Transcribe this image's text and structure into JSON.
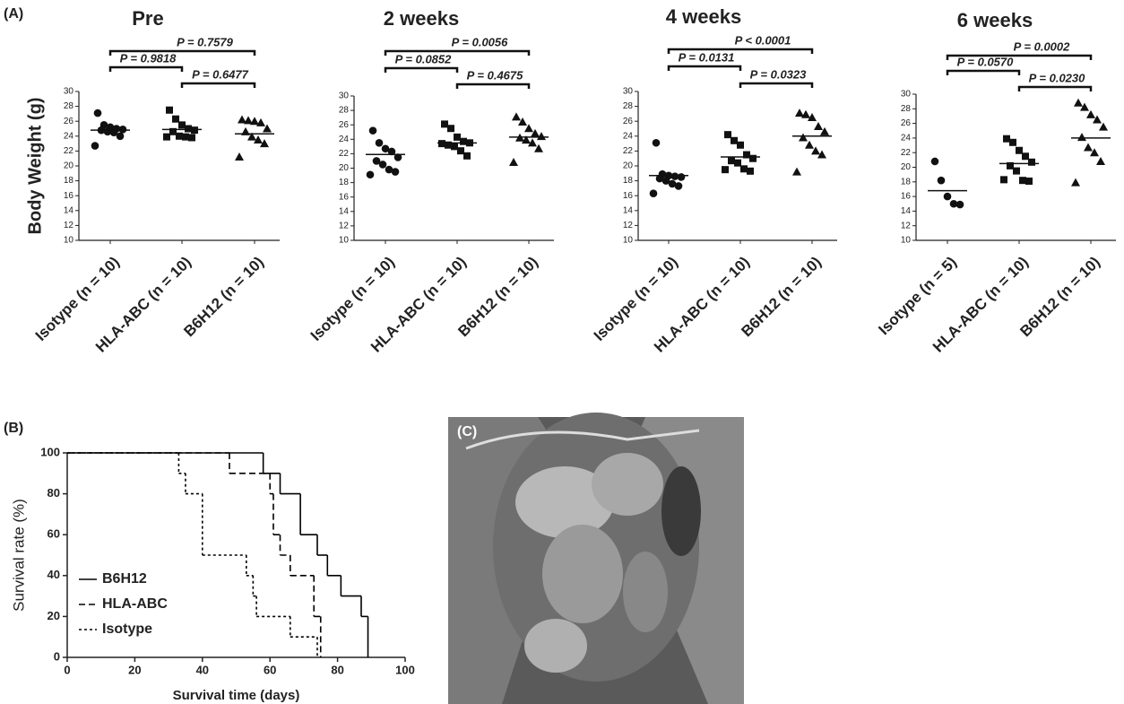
{
  "panel_labels": [
    "(A)",
    "(B)",
    "(C)"
  ],
  "chart_data": [
    {
      "type": "dot",
      "title": "Pre",
      "ylabel": "Body Weight (g)",
      "categories": [
        "Isotype (n = 10)",
        "HLA-ABC (n = 10)",
        "B6H12 (n = 10)"
      ],
      "markers": [
        "circle",
        "square",
        "triangle"
      ],
      "values": [
        [
          27.1,
          25.5,
          25.2,
          25.0,
          24.9,
          24.8,
          24.6,
          24.5,
          24.0,
          22.7
        ],
        [
          27.5,
          26.3,
          25.5,
          25.0,
          24.8,
          24.6,
          24.0,
          23.9,
          23.8,
          23.9
        ],
        [
          26.2,
          26.1,
          26.0,
          25.8,
          25.0,
          24.6,
          23.9,
          23.5,
          23.0,
          21.2
        ]
      ],
      "means": [
        24.8,
        24.9,
        24.3
      ],
      "comparisons": [
        "P = 0.7579",
        "P = 0.9818",
        "P = 0.6477"
      ],
      "ylim": [
        10,
        30
      ],
      "yticks": [
        10,
        12,
        14,
        16,
        18,
        20,
        22,
        24,
        26,
        28,
        30
      ]
    },
    {
      "type": "dot",
      "title": "2 weeks",
      "categories": [
        "Isotype (n = 10)",
        "HLA-ABC (n = 10)",
        "B6H12 (n = 10)"
      ],
      "markers": [
        "circle",
        "square",
        "triangle"
      ],
      "values": [
        [
          25.2,
          23.5,
          22.7,
          22.3,
          21.5,
          21.0,
          20.5,
          19.8,
          19.5,
          19.1
        ],
        [
          26.1,
          25.5,
          24.3,
          23.7,
          23.5,
          23.2,
          23.0,
          22.4,
          21.7,
          23.4
        ],
        [
          27.1,
          26.4,
          25.5,
          24.8,
          24.4,
          24.2,
          23.9,
          23.5,
          22.7,
          20.8
        ]
      ],
      "means": [
        21.9,
        23.5,
        24.3
      ],
      "comparisons": [
        "P = 0.0056",
        "P = 0.0852",
        "P = 0.4675"
      ],
      "ylim": [
        10,
        30
      ],
      "yticks": [
        10,
        12,
        14,
        16,
        18,
        20,
        22,
        24,
        26,
        28,
        30
      ]
    },
    {
      "type": "dot",
      "title": "4 weeks",
      "categories": [
        "Isotype (n = 10)",
        "HLA-ABC (n = 10)",
        "B6H12 (n = 10)"
      ],
      "markers": [
        "circle",
        "square",
        "triangle"
      ],
      "values": [
        [
          23.1,
          18.9,
          18.7,
          18.6,
          18.5,
          18.3,
          18.0,
          17.6,
          17.3,
          16.3
        ],
        [
          24.2,
          23.4,
          22.8,
          21.5,
          21.0,
          20.7,
          20.4,
          19.6,
          19.3,
          19.5
        ],
        [
          27.1,
          26.9,
          26.5,
          25.3,
          24.6,
          23.8,
          22.8,
          22.0,
          21.5,
          19.2
        ]
      ],
      "means": [
        18.7,
        21.2,
        24.0
      ],
      "comparisons": [
        "P < 0.0001",
        "P = 0.0131",
        "P = 0.0323"
      ],
      "ylim": [
        10,
        30
      ],
      "yticks": [
        10,
        12,
        14,
        16,
        18,
        20,
        22,
        24,
        26,
        28,
        30
      ]
    },
    {
      "type": "dot",
      "title": "6 weeks",
      "categories": [
        "Isotype (n = 5)",
        "HLA-ABC (n = 10)",
        "B6H12 (n = 10)"
      ],
      "markers": [
        "circle",
        "square",
        "triangle"
      ],
      "values": [
        [
          20.8,
          18.2,
          16.0,
          15.0,
          14.9
        ],
        [
          23.9,
          23.4,
          22.3,
          21.5,
          20.7,
          20.2,
          19.5,
          18.2,
          18.1,
          18.3
        ],
        [
          28.8,
          28.2,
          27.2,
          26.5,
          25.5,
          24.1,
          22.7,
          22.0,
          20.8,
          17.9
        ]
      ],
      "means": [
        16.8,
        20.5,
        24.0
      ],
      "comparisons": [
        "P = 0.0002",
        "P = 0.0570",
        "P = 0.0230"
      ],
      "ylim": [
        10,
        30
      ],
      "yticks": [
        10,
        12,
        14,
        16,
        18,
        20,
        22,
        24,
        26,
        28,
        30
      ]
    },
    {
      "type": "step",
      "xlabel": "Survival time (days)",
      "ylabel": "Survival rate (%)",
      "series": [
        {
          "name": "B6H12",
          "dash": "solid",
          "color": "#000000",
          "x": [
            0,
            58,
            63,
            69,
            74,
            77,
            81,
            87,
            89
          ],
          "values": [
            100,
            90,
            80,
            60,
            50,
            40,
            30,
            20,
            0
          ]
        },
        {
          "name": "HLA-ABC",
          "dash": "dashed",
          "color": "#000000",
          "x": [
            0,
            48,
            60,
            61,
            63,
            66,
            73,
            75
          ],
          "values": [
            100,
            90,
            80,
            60,
            50,
            40,
            20,
            0
          ]
        },
        {
          "name": "Isotype",
          "dash": "dotted",
          "color": "#000000",
          "x": [
            0,
            33,
            35,
            40,
            53,
            55,
            56,
            66,
            74
          ],
          "values": [
            100,
            90,
            80,
            50,
            40,
            30,
            20,
            10,
            0
          ]
        }
      ],
      "xlim": [
        0,
        100
      ],
      "xticks": [
        0,
        20,
        40,
        60,
        80,
        100
      ],
      "ylim": [
        0,
        100
      ],
      "yticks": [
        0,
        20,
        40,
        60,
        80,
        100
      ],
      "legend": "lower-left"
    }
  ]
}
